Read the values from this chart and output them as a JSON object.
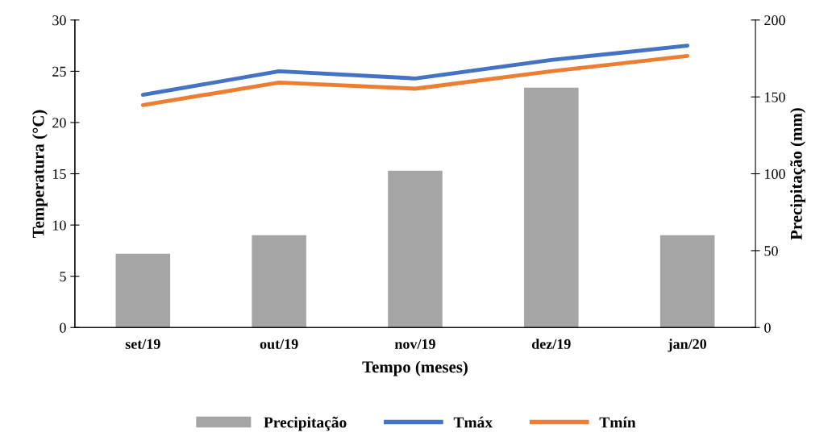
{
  "chart_data": {
    "type": "line",
    "xlabel": "Tempo (meses)",
    "ylabel": "Temperatura (°C)",
    "y2label": "Precipitação (mm)",
    "categories": [
      "set/19",
      "out/19",
      "nov/19",
      "dez/19",
      "jan/20"
    ],
    "series": [
      {
        "name": "Precipitação",
        "type": "bar",
        "axis": "y2",
        "color": "#a5a5a5",
        "values": [
          48,
          60,
          102,
          156,
          60
        ]
      },
      {
        "name": "Tmáx",
        "color": "#4472c4",
        "values": [
          22.7,
          25.0,
          24.3,
          26.1,
          27.5
        ]
      },
      {
        "name": "Tmín",
        "color": "#ed7d31",
        "values": [
          21.7,
          23.9,
          23.3,
          25.0,
          26.5
        ]
      }
    ],
    "ylim": [
      0,
      30
    ],
    "yticks": [
      0,
      5,
      10,
      15,
      20,
      25,
      30
    ],
    "y2lim": [
      0,
      200
    ],
    "y2ticks": [
      0,
      50,
      100,
      150,
      200
    ],
    "grid": false,
    "legend": "bottom",
    "marker": "none",
    "line_style": "solid"
  }
}
